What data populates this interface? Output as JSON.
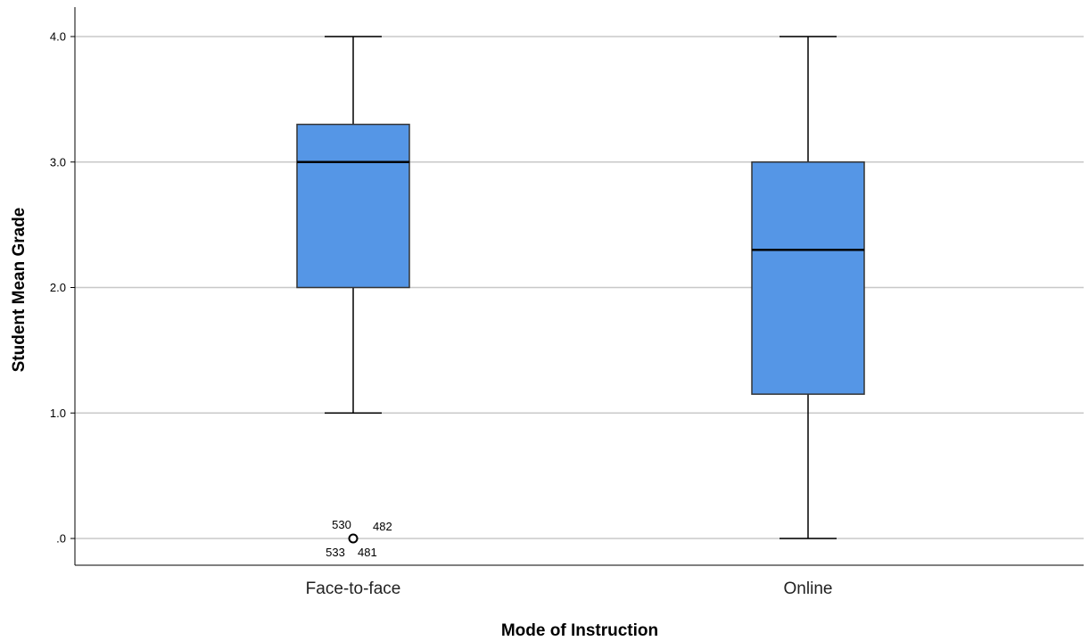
{
  "chart_data": {
    "type": "boxplot",
    "xlabel": "Mode of Instruction",
    "ylabel": "Student Mean Grade",
    "ylim": [
      -0.2,
      4.2
    ],
    "yticks": [
      {
        "value": 0,
        "label": ".0"
      },
      {
        "value": 1,
        "label": "1.0"
      },
      {
        "value": 2,
        "label": "2.0"
      },
      {
        "value": 3,
        "label": "3.0"
      },
      {
        "value": 4,
        "label": "4.0"
      }
    ],
    "grid": true,
    "box_color": "#5596e6",
    "categories": [
      "Face-to-face",
      "Online"
    ],
    "boxes": [
      {
        "category": "Face-to-face",
        "whisker_low": 1.0,
        "q1": 2.0,
        "median": 3.0,
        "q3": 3.3,
        "whisker_high": 4.0,
        "outliers": [
          {
            "value": 0,
            "labels": [
              "530",
              "482",
              "533",
              "481"
            ]
          }
        ]
      },
      {
        "category": "Online",
        "whisker_low": 0.0,
        "q1": 1.15,
        "median": 2.3,
        "q3": 3.0,
        "whisker_high": 4.0,
        "outliers": []
      }
    ]
  }
}
